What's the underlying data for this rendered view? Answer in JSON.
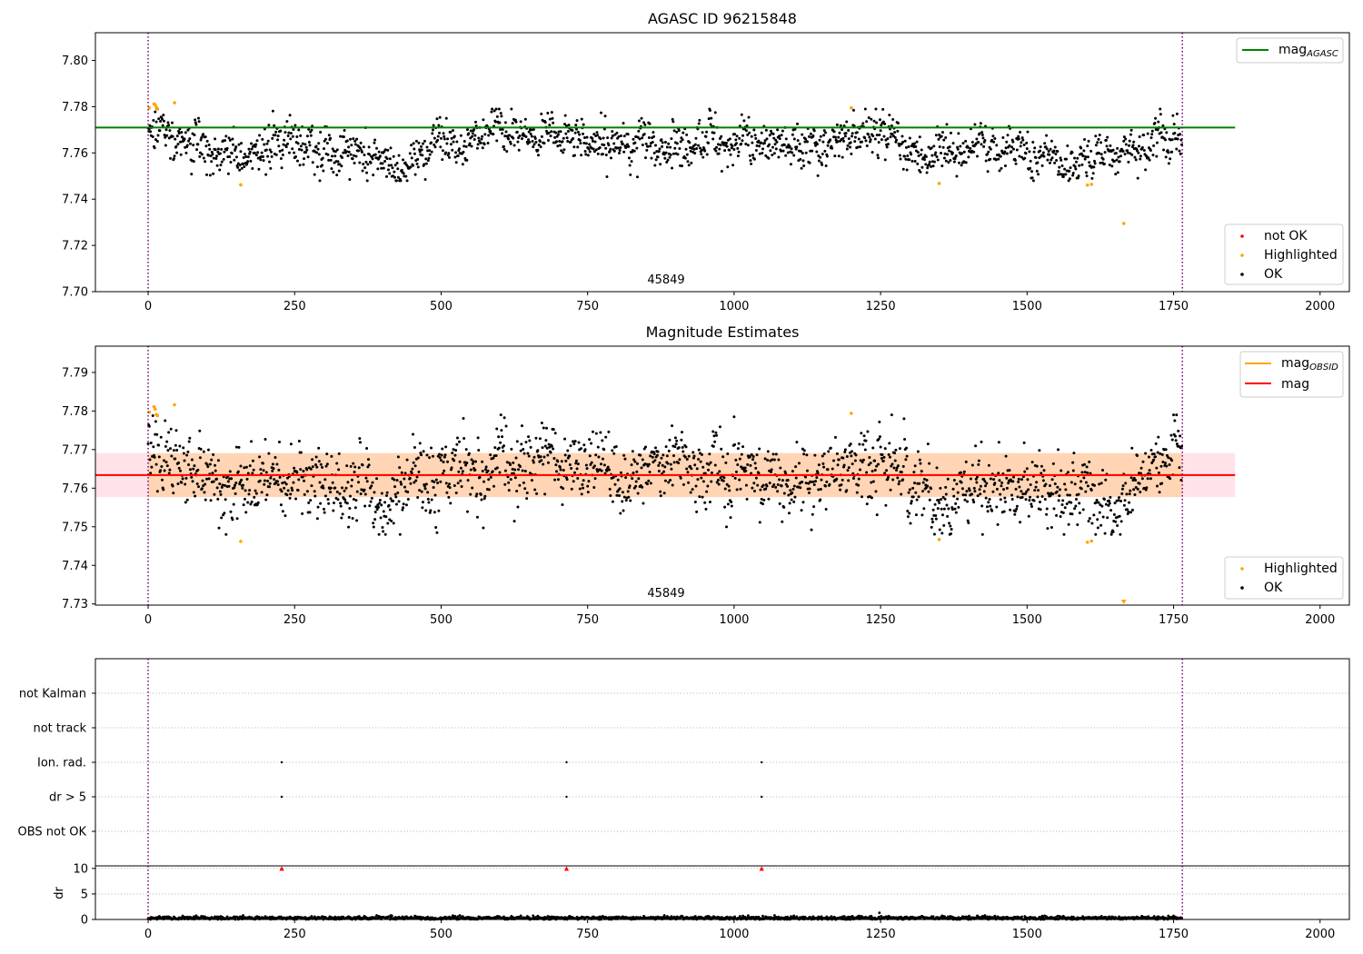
{
  "chart_data": [
    {
      "type": "scatter",
      "title": "AGASC ID 96215848",
      "xlim": [
        -90,
        2050
      ],
      "ylim": [
        7.7,
        7.812
      ],
      "x_ticks": [
        0,
        250,
        500,
        750,
        1000,
        1250,
        1500,
        1750,
        2000
      ],
      "y_ticks": [
        7.7,
        7.72,
        7.74,
        7.76,
        7.78,
        7.8
      ],
      "y_tick_labels": [
        "7.70",
        "7.72",
        "7.74",
        "7.76",
        "7.78",
        "7.80"
      ],
      "obsid_bounds": [
        0,
        1765
      ],
      "obsid_label": "45849",
      "lines": [
        {
          "name": "mag_AGASC",
          "y": 7.771,
          "x_range": [
            -90,
            1855
          ],
          "color": "#008000"
        }
      ],
      "legend_lines": [
        {
          "name": "mag",
          "subscript": "AGASC",
          "color": "#008000"
        }
      ],
      "legend_points": [
        {
          "name": "not OK",
          "color": "#ff0000"
        },
        {
          "name": "Highlighted",
          "color": "#ffa500"
        },
        {
          "name": "OK",
          "color": "#000000"
        }
      ],
      "series": [
        {
          "name": "Highlighted",
          "color": "#ffa500",
          "points": [
            [
              2,
              7.7795
            ],
            [
              10,
              7.7812
            ],
            [
              12,
              7.7808
            ],
            [
              14,
              7.7798
            ],
            [
              16,
              7.779
            ],
            [
              45,
              7.7817
            ],
            [
              158,
              7.7462
            ],
            [
              1200,
              7.7795
            ],
            [
              1350,
              7.7468
            ],
            [
              1603,
              7.7461
            ],
            [
              1610,
              7.7464
            ],
            [
              1665,
              7.7295
            ]
          ]
        },
        {
          "name": "OK",
          "color": "#000000",
          "count": 1765,
          "x_range": [
            0,
            1765
          ],
          "y_range": [
            7.748,
            7.779
          ],
          "trend": [
            [
              0,
              7.771
            ],
            [
              60,
              7.765
            ],
            [
              150,
              7.76
            ],
            [
              250,
              7.764
            ],
            [
              400,
              7.757
            ],
            [
              550,
              7.766
            ],
            [
              700,
              7.769
            ],
            [
              850,
              7.764
            ],
            [
              1000,
              7.767
            ],
            [
              1100,
              7.761
            ],
            [
              1230,
              7.768
            ],
            [
              1350,
              7.758
            ],
            [
              1450,
              7.764
            ],
            [
              1600,
              7.757
            ],
            [
              1700,
              7.762
            ],
            [
              1765,
              7.768
            ]
          ]
        }
      ]
    },
    {
      "type": "scatter",
      "title": "Magnitude Estimates",
      "xlim": [
        -90,
        2050
      ],
      "ylim": [
        7.7297,
        7.7968
      ],
      "x_ticks": [
        0,
        250,
        500,
        750,
        1000,
        1250,
        1500,
        1750,
        2000
      ],
      "y_ticks": [
        7.73,
        7.74,
        7.75,
        7.76,
        7.77,
        7.78,
        7.79
      ],
      "y_tick_labels": [
        "7.73",
        "7.74",
        "7.75",
        "7.76",
        "7.77",
        "7.78",
        "7.79"
      ],
      "obsid_bounds": [
        0,
        1765
      ],
      "obsid_label": "45849",
      "mag": 7.7634,
      "mag_band": [
        7.7577,
        7.7691
      ],
      "mag_obsid": 7.7634,
      "legend_lines": [
        {
          "name": "mag",
          "subscript": "OBSID",
          "color": "#ffa500"
        },
        {
          "name": "mag",
          "subscript": "",
          "color": "#ff0000"
        }
      ],
      "legend_points": [
        {
          "name": "Highlighted",
          "color": "#ffa500"
        },
        {
          "name": "OK",
          "color": "#000000"
        }
      ],
      "series": [
        {
          "name": "Highlighted",
          "color": "#ffa500",
          "points": [
            [
              2,
              7.7797
            ],
            [
              10,
              7.7811
            ],
            [
              12,
              7.7805
            ],
            [
              14,
              7.7791
            ],
            [
              16,
              7.7788
            ],
            [
              45,
              7.7816
            ],
            [
              158,
              7.7462
            ],
            [
              1200,
              7.7794
            ],
            [
              1350,
              7.7467
            ],
            [
              1603,
              7.746
            ],
            [
              1610,
              7.7463
            ]
          ],
          "off_scale_points": [
            [
              1665,
              7.7295
            ]
          ]
        },
        {
          "name": "OK",
          "color": "#000000",
          "count": 1765,
          "x_range": [
            0,
            1765
          ],
          "y_range": [
            7.748,
            7.779
          ],
          "trend": [
            [
              0,
              7.771
            ],
            [
              60,
              7.765
            ],
            [
              150,
              7.76
            ],
            [
              250,
              7.764
            ],
            [
              400,
              7.757
            ],
            [
              550,
              7.766
            ],
            [
              700,
              7.769
            ],
            [
              850,
              7.764
            ],
            [
              1000,
              7.767
            ],
            [
              1100,
              7.761
            ],
            [
              1230,
              7.768
            ],
            [
              1350,
              7.758
            ],
            [
              1450,
              7.764
            ],
            [
              1600,
              7.757
            ],
            [
              1700,
              7.762
            ],
            [
              1765,
              7.768
            ]
          ]
        }
      ]
    },
    {
      "type": "scatter",
      "xlim": [
        -90,
        2050
      ],
      "categories": [
        "OBS not OK",
        "dr > 5",
        "Ion. rad.",
        "not track",
        "not Kalman"
      ],
      "x_ticks": [
        0,
        250,
        500,
        750,
        1000,
        1250,
        1500,
        1750,
        2000
      ],
      "obsid_bounds": [
        0,
        1765
      ],
      "series": [
        {
          "name": "Ion. rad.",
          "x": [
            228,
            714,
            1047
          ]
        },
        {
          "name": "dr > 5",
          "x": [
            228,
            714,
            1047
          ]
        }
      ]
    },
    {
      "type": "scatter",
      "xlim": [
        -90,
        2050
      ],
      "ylim": [
        0,
        10.5
      ],
      "ylabel": "dr",
      "y_ticks": [
        0,
        5,
        10
      ],
      "x_ticks": [
        0,
        250,
        500,
        750,
        1000,
        1250,
        1500,
        1750,
        2000
      ],
      "obsid_bounds": [
        0,
        1765
      ],
      "series": [
        {
          "name": "dr",
          "color": "#000000",
          "count": 1765,
          "x_range": [
            0,
            1765
          ],
          "y_range": [
            0,
            0.8
          ],
          "outliers": [
            [
              1248,
              1.3
            ]
          ]
        },
        {
          "name": "dr > 10",
          "color": "#ff0000",
          "marker": "triangle-up",
          "points": [
            [
              228,
              9.9
            ],
            [
              714,
              9.9
            ],
            [
              1047,
              9.9
            ]
          ]
        }
      ]
    }
  ]
}
